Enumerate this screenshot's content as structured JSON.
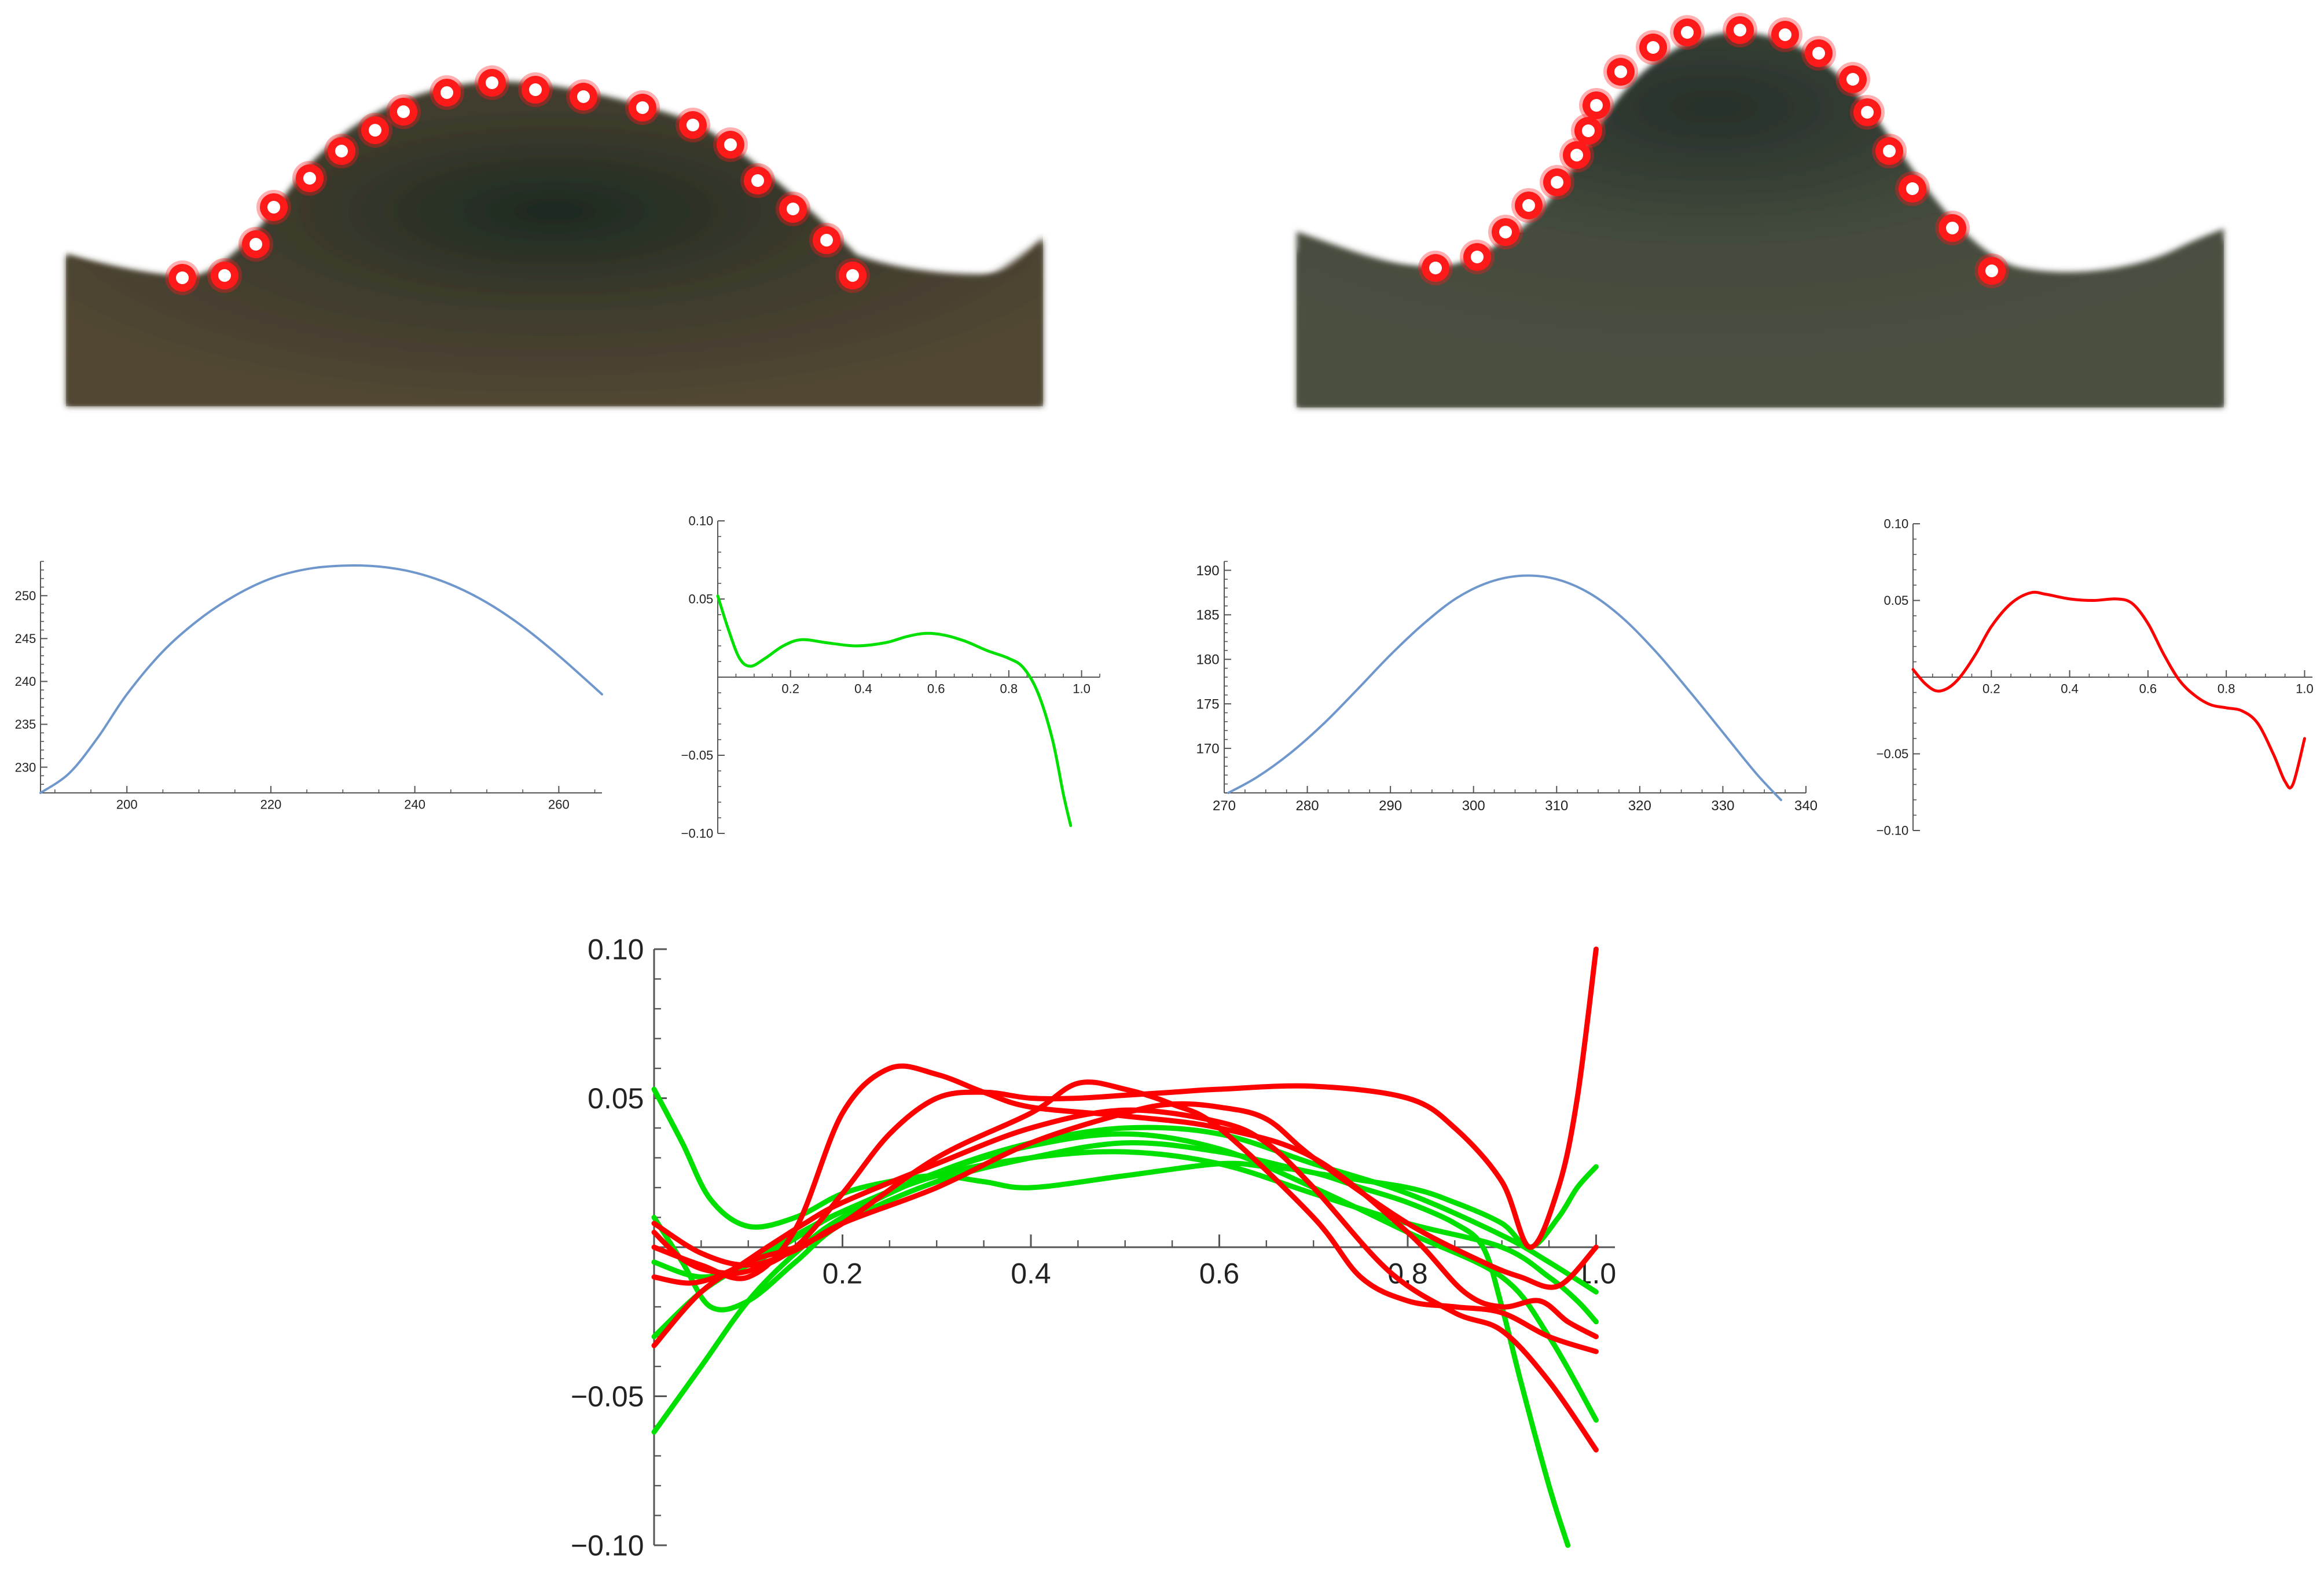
{
  "colors": {
    "landmark_fill": "#ff1a1a",
    "landmark_ring": "#ffffff",
    "profile_curve": "#6f97cc",
    "green_series": "#00e000",
    "red_series": "#ff0000",
    "axis": "#555555"
  },
  "photos": [
    {
      "name": "left-shape-photo",
      "landmarks": 18
    },
    {
      "name": "right-shape-photo",
      "landmarks": 19
    }
  ],
  "chart_data": [
    {
      "type": "line",
      "xlim": [
        188,
        266
      ],
      "ylim": [
        227,
        254
      ],
      "x_ticks": [
        200,
        220,
        240,
        260
      ],
      "x_tick_labels": [
        "200",
        "220",
        "240",
        "260"
      ],
      "y_ticks": [
        230,
        235,
        240,
        245,
        250
      ],
      "y_tick_labels": [
        "230",
        "235",
        "240",
        "245",
        "250"
      ],
      "series": [
        {
          "color": "#6f97cc",
          "x": [
            188,
            192,
            196,
            200,
            205,
            210,
            215,
            220,
            225,
            230,
            235,
            240,
            245,
            250,
            255,
            260,
            266
          ],
          "y": [
            227.0,
            229.3,
            233.5,
            238.5,
            243.5,
            247.2,
            250.0,
            252.0,
            253.1,
            253.5,
            253.4,
            252.7,
            251.3,
            249.2,
            246.4,
            243.0,
            238.5
          ]
        }
      ]
    },
    {
      "type": "line",
      "xlim": [
        0,
        1.05
      ],
      "ylim": [
        -0.1,
        0.1
      ],
      "x_ticks": [
        0.2,
        0.4,
        0.6,
        0.8,
        1.0
      ],
      "x_tick_labels": [
        "0.2",
        "0.4",
        "0.6",
        "0.8",
        "1.0"
      ],
      "y_ticks": [
        -0.1,
        -0.05,
        0.05,
        0.1
      ],
      "y_tick_labels": [
        "-0.10",
        "-0.05",
        "0.05",
        "0.10"
      ],
      "series": [
        {
          "color": "#00e000",
          "x": [
            0,
            0.03,
            0.06,
            0.09,
            0.13,
            0.18,
            0.23,
            0.3,
            0.38,
            0.46,
            0.52,
            0.57,
            0.62,
            0.68,
            0.74,
            0.8,
            0.84,
            0.88,
            0.92,
            0.95,
            0.97
          ],
          "y": [
            0.052,
            0.03,
            0.012,
            0.007,
            0.012,
            0.02,
            0.024,
            0.022,
            0.02,
            0.022,
            0.026,
            0.028,
            0.027,
            0.023,
            0.017,
            0.012,
            0.006,
            -0.01,
            -0.04,
            -0.075,
            -0.095
          ]
        }
      ]
    },
    {
      "type": "line",
      "xlim": [
        270,
        340
      ],
      "ylim": [
        165,
        191
      ],
      "x_ticks": [
        270,
        280,
        290,
        300,
        310,
        320,
        330,
        340
      ],
      "x_tick_labels": [
        "270",
        "280",
        "290",
        "300",
        "310",
        "320",
        "330",
        "340"
      ],
      "y_ticks": [
        170,
        175,
        180,
        185,
        190
      ],
      "y_tick_labels": [
        "170",
        "175",
        "180",
        "185",
        "190"
      ],
      "series": [
        {
          "color": "#6f97cc",
          "x": [
            270.5,
            274,
            278,
            282,
            286,
            290,
            294,
            298,
            302,
            306,
            310,
            314,
            318,
            322,
            326,
            330,
            334,
            337
          ],
          "y": [
            165.0,
            166.8,
            169.5,
            172.8,
            176.6,
            180.5,
            184.0,
            186.9,
            188.7,
            189.4,
            189.0,
            187.4,
            184.6,
            180.8,
            176.4,
            171.8,
            167.2,
            164.2
          ]
        }
      ]
    },
    {
      "type": "line",
      "xlim": [
        0,
        1.02
      ],
      "ylim": [
        -0.1,
        0.1
      ],
      "x_ticks": [
        0.2,
        0.4,
        0.6,
        0.8,
        1.0
      ],
      "x_tick_labels": [
        "0.2",
        "0.4",
        "0.6",
        "0.8",
        "1.0"
      ],
      "y_ticks": [
        -0.1,
        -0.05,
        0.05,
        0.1
      ],
      "y_tick_labels": [
        "-0.10",
        "-0.05",
        "0.05",
        "0.10"
      ],
      "series": [
        {
          "color": "#ff0000",
          "x": [
            0,
            0.03,
            0.06,
            0.09,
            0.12,
            0.16,
            0.2,
            0.25,
            0.3,
            0.34,
            0.4,
            0.46,
            0.52,
            0.56,
            0.6,
            0.64,
            0.68,
            0.72,
            0.76,
            0.8,
            0.84,
            0.88,
            0.92,
            0.95,
            0.97,
            1.0
          ],
          "y": [
            0.005,
            -0.004,
            -0.009,
            -0.007,
            0.0,
            0.015,
            0.033,
            0.048,
            0.055,
            0.054,
            0.051,
            0.05,
            0.051,
            0.048,
            0.035,
            0.015,
            -0.002,
            -0.012,
            -0.018,
            -0.02,
            -0.022,
            -0.03,
            -0.05,
            -0.068,
            -0.07,
            -0.04
          ]
        }
      ]
    },
    {
      "type": "line",
      "xlim": [
        0,
        1.02
      ],
      "ylim": [
        -0.1,
        0.1
      ],
      "x_ticks": [
        0.2,
        0.4,
        0.6,
        0.8,
        1.0
      ],
      "x_tick_labels": [
        "0.2",
        "0.4",
        "0.6",
        "0.8",
        "1.0"
      ],
      "y_ticks": [
        -0.1,
        -0.05,
        0.05,
        0.1
      ],
      "y_tick_labels": [
        "-0.10",
        "-0.05",
        "0.05",
        "0.10"
      ],
      "series": [
        {
          "color": "#00e000",
          "x": [
            0,
            0.03,
            0.06,
            0.1,
            0.15,
            0.2,
            0.25,
            0.3,
            0.35,
            0.4,
            0.5,
            0.6,
            0.65,
            0.7,
            0.75,
            0.8,
            0.85,
            0.88,
            0.9,
            0.92,
            0.95,
            0.97
          ],
          "y": [
            0.053,
            0.035,
            0.016,
            0.007,
            0.01,
            0.018,
            0.022,
            0.024,
            0.022,
            0.02,
            0.024,
            0.028,
            0.027,
            0.025,
            0.02,
            0.015,
            0.008,
            0.0,
            -0.02,
            -0.045,
            -0.08,
            -0.1
          ]
        },
        {
          "color": "#00e000",
          "x": [
            0,
            0.03,
            0.06,
            0.1,
            0.15,
            0.2,
            0.3,
            0.4,
            0.5,
            0.6,
            0.7,
            0.8,
            0.85,
            0.9,
            0.93,
            0.96,
            0.98,
            1.0
          ],
          "y": [
            0.01,
            -0.005,
            -0.02,
            -0.018,
            -0.005,
            0.008,
            0.022,
            0.03,
            0.035,
            0.032,
            0.025,
            0.02,
            0.015,
            0.008,
            0.0,
            0.01,
            0.02,
            0.027
          ]
        },
        {
          "color": "#00e000",
          "x": [
            0,
            0.05,
            0.1,
            0.15,
            0.2,
            0.3,
            0.4,
            0.5,
            0.6,
            0.7,
            0.8,
            0.9,
            0.95,
            1.0
          ],
          "y": [
            -0.062,
            -0.04,
            -0.018,
            -0.002,
            0.01,
            0.025,
            0.035,
            0.04,
            0.038,
            0.028,
            0.018,
            0.004,
            -0.005,
            -0.015
          ]
        },
        {
          "color": "#00e000",
          "x": [
            0,
            0.05,
            0.1,
            0.15,
            0.2,
            0.3,
            0.4,
            0.5,
            0.6,
            0.7,
            0.8,
            0.9,
            0.95,
            1.0
          ],
          "y": [
            -0.03,
            -0.015,
            -0.005,
            0.004,
            0.012,
            0.025,
            0.034,
            0.038,
            0.033,
            0.02,
            0.005,
            -0.01,
            -0.03,
            -0.058
          ]
        },
        {
          "color": "#00e000",
          "x": [
            0,
            0.05,
            0.1,
            0.15,
            0.2,
            0.3,
            0.4,
            0.5,
            0.6,
            0.7,
            0.8,
            0.9,
            0.95,
            0.98,
            1.0
          ],
          "y": [
            -0.005,
            -0.01,
            -0.006,
            0.003,
            0.012,
            0.024,
            0.03,
            0.032,
            0.028,
            0.018,
            0.008,
            0.0,
            -0.01,
            -0.018,
            -0.025
          ]
        },
        {
          "color": "#ff0000",
          "x": [
            0,
            0.05,
            0.1,
            0.15,
            0.2,
            0.25,
            0.3,
            0.35,
            0.4,
            0.5,
            0.6,
            0.7,
            0.8,
            0.86,
            0.9,
            0.94,
            0.97,
            1.0
          ],
          "y": [
            0.0,
            -0.006,
            -0.01,
            0.006,
            0.045,
            0.06,
            0.058,
            0.052,
            0.047,
            0.044,
            0.04,
            0.03,
            0.005,
            -0.015,
            -0.02,
            -0.018,
            -0.025,
            -0.03
          ]
        },
        {
          "color": "#ff0000",
          "x": [
            0,
            0.03,
            0.06,
            0.1,
            0.15,
            0.2,
            0.25,
            0.3,
            0.35,
            0.4,
            0.45,
            0.5,
            0.55,
            0.6,
            0.7,
            0.8,
            0.85,
            0.9,
            0.93,
            0.96,
            0.98,
            1.0
          ],
          "y": [
            0.005,
            -0.004,
            -0.008,
            -0.008,
            0.0,
            0.018,
            0.038,
            0.05,
            0.052,
            0.05,
            0.05,
            0.051,
            0.052,
            0.053,
            0.054,
            0.05,
            0.04,
            0.022,
            0.0,
            0.02,
            0.05,
            0.1
          ]
        },
        {
          "color": "#ff0000",
          "x": [
            0,
            0.05,
            0.1,
            0.15,
            0.2,
            0.3,
            0.4,
            0.45,
            0.5,
            0.55,
            0.6,
            0.7,
            0.75,
            0.8,
            0.85,
            0.9,
            0.95,
            1.0
          ],
          "y": [
            -0.033,
            -0.015,
            -0.005,
            0.0,
            0.008,
            0.03,
            0.045,
            0.055,
            0.053,
            0.048,
            0.04,
            0.01,
            -0.01,
            -0.018,
            -0.02,
            -0.022,
            -0.03,
            -0.035
          ]
        },
        {
          "color": "#ff0000",
          "x": [
            0,
            0.04,
            0.08,
            0.12,
            0.16,
            0.2,
            0.3,
            0.4,
            0.5,
            0.6,
            0.65,
            0.7,
            0.78,
            0.85,
            0.9,
            0.95,
            1.0
          ],
          "y": [
            -0.01,
            -0.012,
            -0.008,
            0.0,
            0.008,
            0.015,
            0.028,
            0.04,
            0.046,
            0.042,
            0.035,
            0.02,
            -0.008,
            -0.022,
            -0.028,
            -0.045,
            -0.068
          ]
        },
        {
          "color": "#ff0000",
          "x": [
            0,
            0.05,
            0.1,
            0.15,
            0.2,
            0.3,
            0.4,
            0.5,
            0.55,
            0.6,
            0.65,
            0.7,
            0.8,
            0.88,
            0.92,
            0.96,
            1.0
          ],
          "y": [
            0.008,
            -0.002,
            -0.006,
            -0.001,
            0.008,
            0.02,
            0.035,
            0.045,
            0.048,
            0.047,
            0.043,
            0.03,
            0.008,
            -0.005,
            -0.01,
            -0.013,
            0.0
          ]
        }
      ]
    }
  ]
}
